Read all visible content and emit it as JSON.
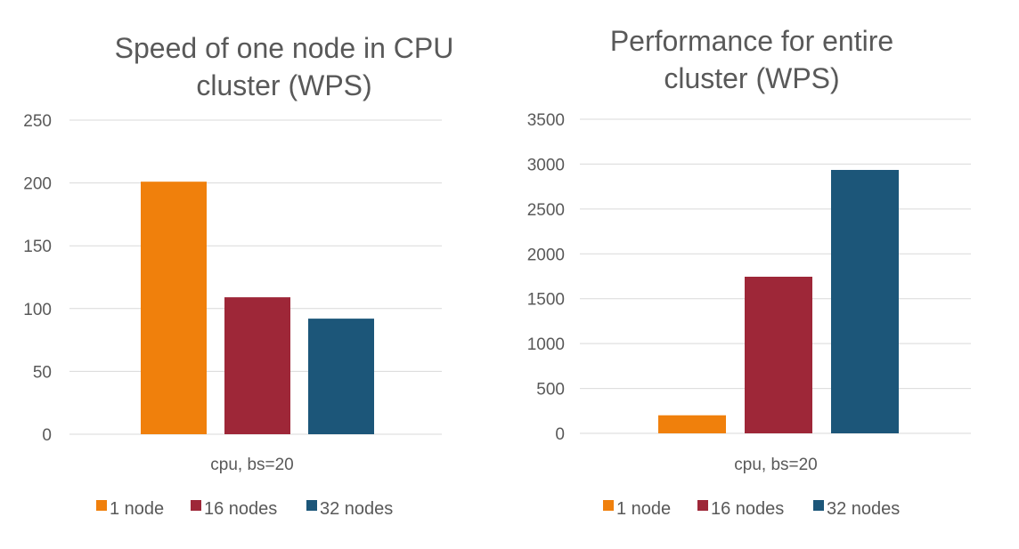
{
  "chart_data": [
    {
      "type": "bar",
      "title_lines": [
        "Speed of one node in CPU",
        "cluster (WPS)"
      ],
      "categories": [
        "cpu, bs=20"
      ],
      "series": [
        {
          "name": "1 node",
          "color": "#F0800C",
          "values": [
            201
          ]
        },
        {
          "name": "16 nodes",
          "color": "#9E2738",
          "values": [
            109
          ]
        },
        {
          "name": "32 nodes",
          "color": "#1C5679",
          "values": [
            92
          ]
        }
      ],
      "ylim": [
        0,
        250
      ],
      "yticks": [
        0,
        50,
        100,
        150,
        200,
        250
      ],
      "grid": true,
      "legend_position": "bottom"
    },
    {
      "type": "bar",
      "title_lines": [
        "Performance for entire",
        "cluster (WPS)"
      ],
      "categories": [
        "cpu, bs=20"
      ],
      "series": [
        {
          "name": "1 node",
          "color": "#F0800C",
          "values": [
            201
          ]
        },
        {
          "name": "16 nodes",
          "color": "#9E2738",
          "values": [
            1745
          ]
        },
        {
          "name": "32 nodes",
          "color": "#1C5679",
          "values": [
            2935
          ]
        }
      ],
      "ylim": [
        0,
        3500
      ],
      "yticks": [
        0,
        500,
        1000,
        1500,
        2000,
        2500,
        3000,
        3500
      ],
      "grid": true,
      "legend_position": "bottom"
    }
  ]
}
